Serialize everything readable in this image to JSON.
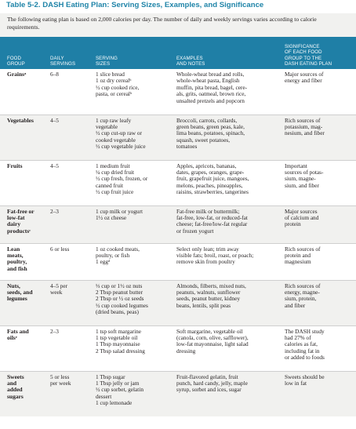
{
  "title": "Table 5-2. DASH Eating Plan: Serving Sizes, Examples, and Significance",
  "intro": "The following eating plan is based on 2,000 calories per day. The number of daily and weekly servings varies according to calorie requirements.",
  "headers": [
    "FOOD\nGROUP",
    "DAILY\nSERVINGS",
    "SERVING\nSIZES",
    "EXAMPLES\nAND NOTES",
    "SIGNIFICANCE\nOF EACH FOOD\nGROUP TO THE\nDASH EATING PLAN"
  ],
  "rows": [
    {
      "group": "Grainsᵃ",
      "servings": "6–8",
      "sizes": "1 slice bread\n1 oz dry cerealᵇ\n½ cup cooked rice,\npasta, or cerealᵇ",
      "examples": "Whole-wheat bread and rolls,\nwhole-wheat pasta, English\nmuffin, pita bread, bagel, cere-\nals, grits, oatmeal, brown rice,\nunsalted pretzels and popcorn",
      "significance": "Major sources of\nenergy and fiber"
    },
    {
      "group": "Vegetables",
      "servings": "4–5",
      "sizes": "1 cup raw leafy\nvegetable\n½ cup cut-up raw or\ncooked vegetable\n½ cup vegetable juice",
      "examples": "Broccoli, carrots, collards,\ngreen beans, green peas, kale,\nlima beans, potatoes, spinach,\nsquash, sweet potatoes,\ntomatoes",
      "significance": "Rich sources of\npotassium, mag-\nnesium, and fiber"
    },
    {
      "group": "Fruits",
      "servings": "4–5",
      "sizes": "1 medium fruit\n¼ cup dried fruit\n½ cup fresh, frozen, or\ncanned fruit\n½ cup fruit juice",
      "examples": "Apples, apricots, bananas,\ndates, grapes, oranges, grape-\nfruit, grapefruit juice, mangoes,\nmelons, peaches, pineapples,\nraisins, strawberries, tangerines",
      "significance": "Important\nsources of potas-\nsium, magne-\nsium, and fiber"
    },
    {
      "group": "Fat-free or\nlow-fat\ndairy\nproductsᶜ",
      "servings": "2–3",
      "sizes": "1 cup milk or yogurt\n1½ oz cheese",
      "examples": "Fat-free milk or buttermilk;\nfat-free, low-fat, or reduced-fat\ncheese; fat-free/low-fat regular\nor frozen yogurt",
      "significance": "Major sources\nof calcium and\nprotein"
    },
    {
      "group": "Lean\nmeats,\npoultry,\nand fish",
      "servings": "6 or less",
      "sizes": "1 oz cooked meats,\npoultry, or fish\n1 eggᵈ",
      "examples": "Select only lean; trim away\nvisible fats; broil, roast, or poach;\nremove skin from poultry",
      "significance": "Rich sources of\nprotein and\nmagnesium"
    },
    {
      "group": "Nuts,\nseeds, and\nlegumes",
      "servings": "4–5 per\nweek",
      "sizes": "⅓ cup or 1½ oz nuts\n2 Tbsp peanut butter\n2 Tbsp or ½ oz seeds\n½ cup cooked legumes\n(dried beans, peas)",
      "examples": "Almonds, filberts, mixed nuts,\npeanuts, walnuts, sunflower\nseeds, peanut butter, kidney\nbeans, lentils, split peas",
      "significance": "Rich sources of\nenergy, magne-\nsium, protein,\nand fiber"
    },
    {
      "group": "Fats and\noilsᵉ",
      "servings": "2–3",
      "sizes": "1 tsp soft margarine\n1 tsp vegetable oil\n1 Tbsp mayonnaise\n2 Tbsp salad dressing",
      "examples": "Soft margarine, vegetable oil\n(canola, corn, olive, safflower),\nlow-fat mayonnaise, light salad\ndressing",
      "significance": "The DASH study\nhad 27% of\ncalories as fat,\nincluding fat in\nor added to foods"
    },
    {
      "group": "Sweets\nand\nadded\nsugars",
      "servings": "5 or less\nper week",
      "sizes": "1 Tbsp sugar\n1 Tbsp jelly or jam\n½ cup sorbet, gelatin\ndessert\n1 cup lemonade",
      "examples": "Fruit-flavored gelatin, fruit\npunch, hard candy, jelly, maple\nsyrup, sorbet and ices, sugar",
      "significance": "Sweets should be\nlow in fat"
    }
  ]
}
